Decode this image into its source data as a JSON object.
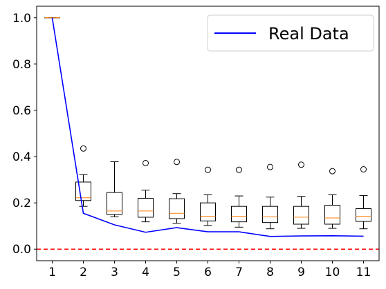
{
  "chart_data": {
    "type": "box",
    "x": [
      1,
      2,
      3,
      4,
      5,
      6,
      7,
      8,
      9,
      10,
      11
    ],
    "xticks": [
      "1",
      "2",
      "3",
      "4",
      "5",
      "6",
      "7",
      "8",
      "9",
      "10",
      "11"
    ],
    "yticks": [
      "0.0",
      "0.2",
      "0.4",
      "0.6",
      "0.8",
      "1.0"
    ],
    "ylim": [
      -0.05,
      1.05
    ],
    "xlim": [
      0.5,
      11.5
    ],
    "grid": false,
    "legend_position": "upper-right",
    "boxes": [
      {
        "x": 1,
        "whislo": 1.0,
        "q1": 1.0,
        "med": 1.0,
        "q3": 1.0,
        "whishi": 1.0,
        "fliers": []
      },
      {
        "x": 2,
        "whislo": 0.185,
        "q1": 0.21,
        "med": 0.222,
        "q3": 0.29,
        "whishi": 0.322,
        "fliers": [
          0.435
        ]
      },
      {
        "x": 3,
        "whislo": 0.14,
        "q1": 0.15,
        "med": 0.165,
        "q3": 0.245,
        "whishi": 0.378,
        "fliers": []
      },
      {
        "x": 4,
        "whislo": 0.118,
        "q1": 0.138,
        "med": 0.165,
        "q3": 0.22,
        "whishi": 0.255,
        "fliers": [
          0.372
        ]
      },
      {
        "x": 5,
        "whislo": 0.112,
        "q1": 0.132,
        "med": 0.155,
        "q3": 0.218,
        "whishi": 0.24,
        "fliers": [
          0.377
        ]
      },
      {
        "x": 6,
        "whislo": 0.102,
        "q1": 0.122,
        "med": 0.142,
        "q3": 0.2,
        "whishi": 0.235,
        "fliers": [
          0.343
        ]
      },
      {
        "x": 7,
        "whislo": 0.095,
        "q1": 0.118,
        "med": 0.142,
        "q3": 0.185,
        "whishi": 0.23,
        "fliers": [
          0.343
        ]
      },
      {
        "x": 8,
        "whislo": 0.088,
        "q1": 0.115,
        "med": 0.14,
        "q3": 0.185,
        "whishi": 0.225,
        "fliers": [
          0.355
        ]
      },
      {
        "x": 9,
        "whislo": 0.09,
        "q1": 0.108,
        "med": 0.138,
        "q3": 0.185,
        "whishi": 0.228,
        "fliers": [
          0.365
        ]
      },
      {
        "x": 10,
        "whislo": 0.09,
        "q1": 0.108,
        "med": 0.135,
        "q3": 0.19,
        "whishi": 0.235,
        "fliers": [
          0.337
        ]
      },
      {
        "x": 11,
        "whislo": 0.088,
        "q1": 0.12,
        "med": 0.142,
        "q3": 0.175,
        "whishi": 0.232,
        "fliers": [
          0.345
        ]
      }
    ],
    "series": [
      {
        "name": "Real Data",
        "color": "#0000ff",
        "x": [
          1,
          2,
          3,
          4,
          5,
          6,
          7,
          8,
          9,
          10,
          11
        ],
        "values": [
          1.0,
          0.155,
          0.105,
          0.073,
          0.093,
          0.075,
          0.075,
          0.055,
          0.057,
          0.058,
          0.056
        ]
      }
    ],
    "reference_line": {
      "y": 0.0,
      "color": "#ff0000",
      "style": "dashed"
    },
    "box_color": "#000000",
    "median_color": "#ff7f0e"
  }
}
